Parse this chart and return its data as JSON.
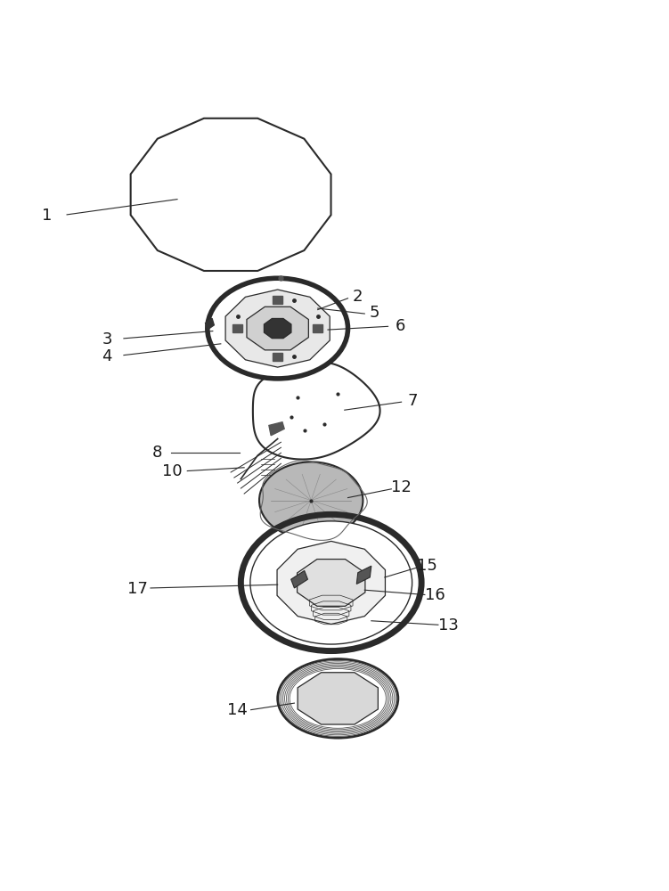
{
  "background_color": "#ffffff",
  "line_color": "#2a2a2a",
  "label_color": "#1a1a1a",
  "label_fontsize": 13
}
